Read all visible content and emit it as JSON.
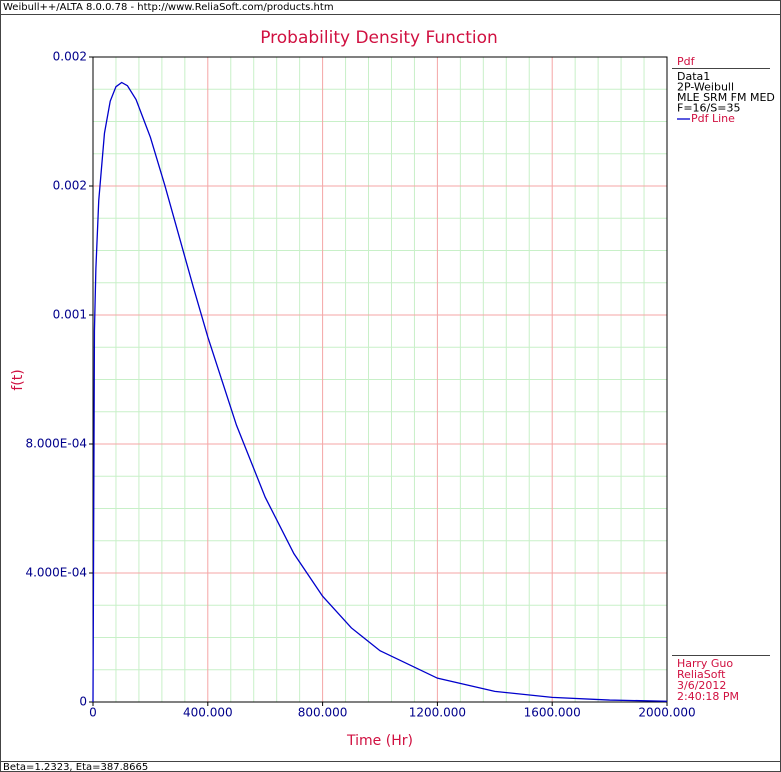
{
  "header": "Weibull++/ALTA 8.0.0.78 - http://www.ReliaSoft.com/products.htm",
  "footer": "Beta=1.2323, Eta=387.8665",
  "chart_data": {
    "type": "line",
    "title": "Probability Density Function",
    "x_label": "Time (Hr)",
    "y_label": "f(t)",
    "x": [
      0,
      5,
      10,
      20,
      40,
      60,
      80,
      100,
      120,
      150,
      200,
      250,
      300,
      350,
      400,
      500,
      600,
      700,
      800,
      900,
      1000,
      1200,
      1400,
      1600,
      1800,
      2000
    ],
    "series": [
      {
        "name": "Pdf Line",
        "color": "#0000cc",
        "values": [
          0,
          0.001151,
          0.001343,
          0.001555,
          0.001764,
          0.001863,
          0.001908,
          0.001921,
          0.001911,
          0.001868,
          0.001751,
          0.001603,
          0.001444,
          0.001285,
          0.001132,
          0.000858,
          0.000635,
          0.00046,
          0.000328,
          0.00023,
          0.000159,
          7.39e-05,
          3.3e-05,
          1.43e-05,
          6e-06,
          2.4e-06
        ]
      }
    ],
    "xlim": [
      0,
      2000
    ],
    "xticks": [
      0,
      {
        "value": 400,
        "label": "400.000"
      },
      {
        "value": 800,
        "label": "800.000"
      },
      {
        "value": 1200,
        "label": "1200.000"
      },
      {
        "value": 1600,
        "label": "1600.000"
      },
      {
        "value": 2000,
        "label": "2000.000"
      }
    ],
    "ylim": [
      0,
      0.002
    ],
    "yticks": [
      0,
      {
        "value": 0.0004,
        "label": "4.000E-04"
      },
      {
        "value": 0.0008,
        "label": "8.000E-04"
      },
      {
        "value": 0.0012,
        "label": "0.001"
      },
      {
        "value": 0.0016,
        "label": "0.002"
      },
      {
        "value": 0.002,
        "label": "0.002"
      }
    ],
    "grid": true,
    "major_grid_color": "#f4a6a6",
    "minor_grid_color": "#c8f0c8",
    "legend_title": "Pdf",
    "legend_info": [
      "Data1",
      "2P-Weibull",
      "MLE SRM FM MED",
      "F=16/S=35"
    ],
    "user_info": [
      "Harry Guo",
      "ReliaSoft",
      "3/6/2012",
      "2:40:18 PM"
    ]
  }
}
